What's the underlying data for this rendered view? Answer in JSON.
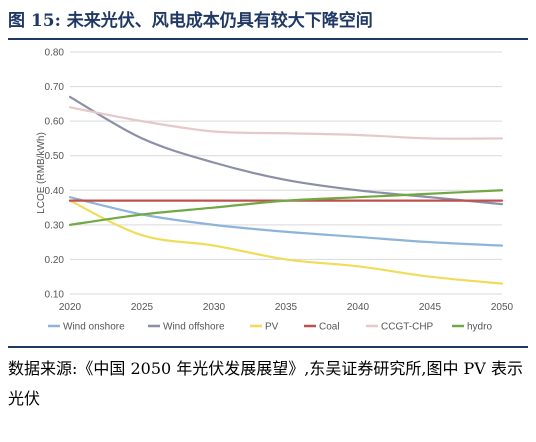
{
  "figure": {
    "title": "图 15:  未来光伏、风电成本仍具有较大下降空间",
    "source": "数据来源:《中国 2050 年光伏发展展望》,东吴证券研究所,图中 PV 表示光伏"
  },
  "chart_data": {
    "type": "line",
    "title": "",
    "xlabel": "",
    "ylabel": "LCOE (RMB/kWh)",
    "xlim": [
      2020,
      2050
    ],
    "ylim": [
      0.1,
      0.8
    ],
    "x_ticks": [
      "2020",
      "2025",
      "2030",
      "2035",
      "2040",
      "2045",
      "2050"
    ],
    "y_ticks": [
      "0.80",
      "0.70",
      "0.60",
      "0.50",
      "0.40",
      "0.30",
      "0.20",
      "0.10"
    ],
    "grid": true,
    "legend_position": "bottom",
    "x": [
      2020,
      2025,
      2030,
      2035,
      2040,
      2045,
      2050
    ],
    "series": [
      {
        "name": "Wind onshore",
        "color": "#8fb4d9",
        "values": [
          0.38,
          0.33,
          0.3,
          0.28,
          0.265,
          0.25,
          0.24
        ]
      },
      {
        "name": "Wind offshore",
        "color": "#8c8fa8",
        "values": [
          0.67,
          0.55,
          0.48,
          0.43,
          0.4,
          0.38,
          0.36
        ]
      },
      {
        "name": "PV",
        "color": "#f0dc5a",
        "values": [
          0.37,
          0.27,
          0.24,
          0.2,
          0.18,
          0.15,
          0.13
        ]
      },
      {
        "name": "Coal",
        "color": "#c0504d",
        "values": [
          0.37,
          0.37,
          0.37,
          0.37,
          0.37,
          0.37,
          0.37
        ]
      },
      {
        "name": "CCGT-CHP",
        "color": "#e6c8c8",
        "values": [
          0.64,
          0.6,
          0.57,
          0.565,
          0.56,
          0.55,
          0.55
        ]
      },
      {
        "name": "hydro",
        "color": "#70a845",
        "values": [
          0.3,
          0.33,
          0.35,
          0.37,
          0.38,
          0.39,
          0.4
        ]
      }
    ]
  }
}
